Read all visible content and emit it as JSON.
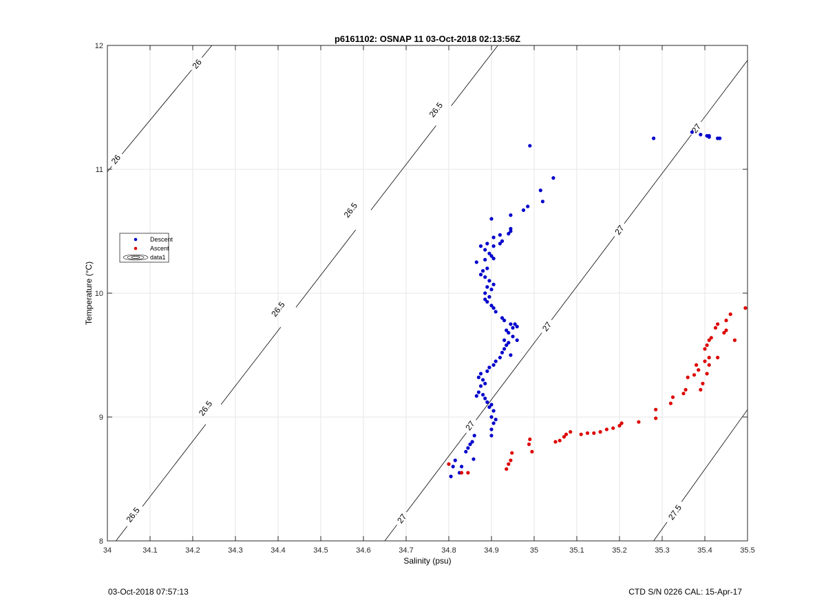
{
  "footer": {
    "left": "03-Oct-2018 07:57:13",
    "right": "CTD S/N 0226  CAL: 15-Apr-17"
  },
  "chart_data": {
    "type": "scatter",
    "title": "p6161102: OSNAP 11 03-Oct-2018 02:13:56Z",
    "xlabel": "Salinity (psu)",
    "ylabel": "Temperature (°C)",
    "xlim": [
      34,
      35.5
    ],
    "ylim": [
      8,
      12
    ],
    "xticks": [
      34,
      34.1,
      34.2,
      34.3,
      34.4,
      34.5,
      34.6,
      34.7,
      34.8,
      34.9,
      35,
      35.1,
      35.2,
      35.3,
      35.4,
      35.5
    ],
    "xtick_labels": [
      "34",
      "34.1",
      "34.2",
      "34.3",
      "34.4",
      "34.5",
      "34.6",
      "34.7",
      "34.8",
      "34.9",
      "35",
      "35.1",
      "35.2",
      "35.3",
      "35.4",
      "35.5"
    ],
    "yticks": [
      8,
      9,
      10,
      11,
      12
    ],
    "ytick_labels": [
      "8",
      "9",
      "10",
      "11",
      "12"
    ],
    "grid": true,
    "legend": {
      "placement": "left",
      "entries": [
        "Descent",
        "Ascent",
        "data1"
      ]
    },
    "contours": [
      {
        "label": "26",
        "line": [
          [
            34.0,
            10.98
          ],
          [
            34.245,
            12.0
          ]
        ],
        "label_positions": [
          [
            34.02,
            11.08
          ],
          [
            34.21,
            11.85
          ]
        ]
      },
      {
        "label": "26.5",
        "line": [
          [
            34.02,
            8.0
          ],
          [
            34.915,
            12.0
          ]
        ],
        "label_positions": [
          [
            34.06,
            8.21
          ],
          [
            34.23,
            9.07
          ],
          [
            34.4,
            9.87
          ],
          [
            34.57,
            10.67
          ],
          [
            34.77,
            11.48
          ]
        ]
      },
      {
        "label": "27",
        "line": [
          [
            34.65,
            8.0
          ],
          [
            35.5,
            11.88
          ]
        ],
        "label_positions": [
          [
            34.69,
            8.18
          ],
          [
            34.85,
            8.93
          ],
          [
            35.03,
            9.73
          ],
          [
            35.2,
            10.51
          ],
          [
            35.38,
            11.33
          ]
        ]
      },
      {
        "label": "27.5",
        "line": [
          [
            35.28,
            8.0
          ],
          [
            35.5,
            9.06
          ]
        ],
        "label_positions": [
          [
            35.33,
            8.23
          ]
        ]
      }
    ],
    "series": [
      {
        "name": "Descent",
        "color": "#0000cc",
        "points": [
          [
            34.805,
            8.52
          ],
          [
            34.81,
            8.6
          ],
          [
            34.815,
            8.65
          ],
          [
            34.825,
            8.55
          ],
          [
            34.83,
            8.6
          ],
          [
            34.84,
            8.72
          ],
          [
            34.845,
            8.75
          ],
          [
            34.85,
            8.78
          ],
          [
            34.855,
            8.8
          ],
          [
            34.86,
            8.85
          ],
          [
            34.858,
            8.66
          ],
          [
            34.9,
            8.85
          ],
          [
            34.9,
            8.9
          ],
          [
            34.905,
            8.95
          ],
          [
            34.91,
            8.98
          ],
          [
            34.9,
            9.0
          ],
          [
            34.905,
            9.05
          ],
          [
            34.895,
            9.08
          ],
          [
            34.9,
            9.1
          ],
          [
            34.89,
            9.12
          ],
          [
            34.885,
            9.15
          ],
          [
            34.88,
            9.18
          ],
          [
            34.87,
            9.2
          ],
          [
            34.865,
            9.17
          ],
          [
            34.875,
            9.25
          ],
          [
            34.885,
            9.27
          ],
          [
            34.88,
            9.3
          ],
          [
            34.87,
            9.32
          ],
          [
            34.875,
            9.35
          ],
          [
            34.89,
            9.37
          ],
          [
            34.895,
            9.4
          ],
          [
            34.905,
            9.42
          ],
          [
            34.91,
            9.45
          ],
          [
            34.92,
            9.48
          ],
          [
            34.925,
            9.52
          ],
          [
            34.93,
            9.55
          ],
          [
            34.935,
            9.58
          ],
          [
            34.93,
            9.62
          ],
          [
            34.94,
            9.6
          ],
          [
            34.945,
            9.5
          ],
          [
            34.95,
            9.65
          ],
          [
            34.96,
            9.62
          ],
          [
            34.94,
            9.68
          ],
          [
            34.95,
            9.72
          ],
          [
            34.955,
            9.75
          ],
          [
            34.96,
            9.73
          ],
          [
            34.945,
            9.75
          ],
          [
            34.935,
            9.7
          ],
          [
            34.93,
            9.78
          ],
          [
            34.925,
            9.8
          ],
          [
            34.91,
            9.85
          ],
          [
            34.905,
            9.88
          ],
          [
            34.9,
            9.9
          ],
          [
            34.89,
            9.93
          ],
          [
            34.885,
            9.95
          ],
          [
            34.895,
            9.97
          ],
          [
            34.885,
            10.0
          ],
          [
            34.9,
            10.03
          ],
          [
            34.89,
            10.05
          ],
          [
            34.905,
            10.07
          ],
          [
            34.895,
            10.1
          ],
          [
            34.885,
            10.13
          ],
          [
            34.875,
            10.15
          ],
          [
            34.88,
            10.18
          ],
          [
            34.89,
            10.2
          ],
          [
            34.865,
            10.25
          ],
          [
            34.885,
            10.27
          ],
          [
            34.9,
            10.3
          ],
          [
            34.905,
            10.28
          ],
          [
            34.895,
            10.32
          ],
          [
            34.885,
            10.35
          ],
          [
            34.875,
            10.38
          ],
          [
            34.89,
            10.4
          ],
          [
            34.905,
            10.38
          ],
          [
            34.92,
            10.4
          ],
          [
            34.925,
            10.42
          ],
          [
            34.905,
            10.45
          ],
          [
            34.92,
            10.47
          ],
          [
            34.94,
            10.48
          ],
          [
            34.945,
            10.5
          ],
          [
            34.945,
            10.52
          ],
          [
            34.9,
            10.6
          ],
          [
            34.945,
            10.63
          ],
          [
            34.975,
            10.67
          ],
          [
            34.985,
            10.7
          ],
          [
            35.02,
            10.74
          ],
          [
            35.015,
            10.83
          ],
          [
            35.045,
            10.93
          ],
          [
            34.99,
            11.19
          ],
          [
            35.28,
            11.25
          ],
          [
            35.37,
            11.3
          ],
          [
            35.39,
            11.28
          ],
          [
            35.405,
            11.27
          ],
          [
            35.41,
            11.26
          ],
          [
            35.41,
            11.27
          ],
          [
            35.43,
            11.25
          ],
          [
            35.435,
            11.25
          ]
        ]
      },
      {
        "name": "Ascent",
        "color": "#dd0000",
        "points": [
          [
            34.8,
            8.62
          ],
          [
            34.83,
            8.55
          ],
          [
            34.845,
            8.55
          ],
          [
            34.935,
            8.58
          ],
          [
            34.94,
            8.62
          ],
          [
            34.945,
            8.65
          ],
          [
            34.948,
            8.71
          ],
          [
            34.988,
            8.78
          ],
          [
            34.99,
            8.82
          ],
          [
            34.995,
            8.72
          ],
          [
            35.05,
            8.8
          ],
          [
            35.06,
            8.81
          ],
          [
            35.07,
            8.84
          ],
          [
            35.075,
            8.86
          ],
          [
            35.085,
            8.88
          ],
          [
            35.11,
            8.86
          ],
          [
            35.125,
            8.87
          ],
          [
            35.14,
            8.87
          ],
          [
            35.155,
            8.88
          ],
          [
            35.17,
            8.9
          ],
          [
            35.185,
            8.91
          ],
          [
            35.2,
            8.93
          ],
          [
            35.205,
            8.95
          ],
          [
            35.245,
            8.96
          ],
          [
            35.285,
            8.99
          ],
          [
            35.285,
            9.06
          ],
          [
            35.32,
            9.11
          ],
          [
            35.325,
            9.16
          ],
          [
            35.35,
            9.19
          ],
          [
            35.355,
            9.22
          ],
          [
            35.36,
            9.32
          ],
          [
            35.375,
            9.34
          ],
          [
            35.385,
            9.38
          ],
          [
            35.38,
            9.42
          ],
          [
            35.39,
            9.22
          ],
          [
            35.395,
            9.27
          ],
          [
            35.4,
            9.45
          ],
          [
            35.405,
            9.35
          ],
          [
            35.41,
            9.42
          ],
          [
            35.41,
            9.48
          ],
          [
            35.4,
            9.55
          ],
          [
            35.405,
            9.58
          ],
          [
            35.41,
            9.62
          ],
          [
            35.415,
            9.64
          ],
          [
            35.43,
            9.48
          ],
          [
            35.425,
            9.72
          ],
          [
            35.43,
            9.75
          ],
          [
            35.445,
            9.68
          ],
          [
            35.45,
            9.7
          ],
          [
            35.45,
            9.78
          ],
          [
            35.46,
            9.83
          ],
          [
            35.47,
            9.62
          ],
          [
            35.495,
            9.88
          ]
        ]
      }
    ]
  }
}
